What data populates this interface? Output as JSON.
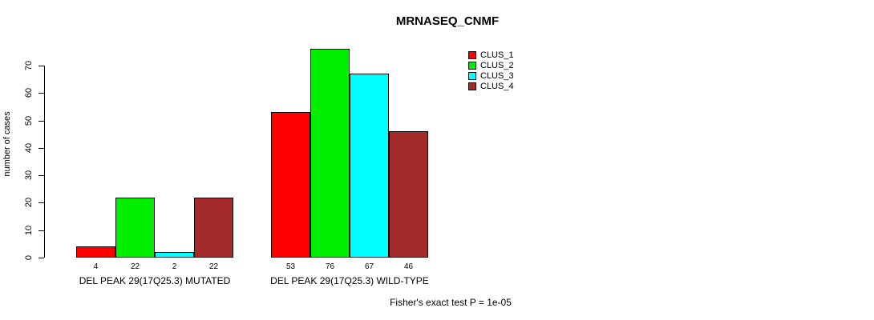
{
  "title": "MRNASEQ_CNMF",
  "footer": "Fisher's exact test P = 1e-05",
  "chart_data": {
    "type": "bar",
    "title": "MRNASEQ_CNMF",
    "xlabel": "",
    "ylabel": "number of cases",
    "ylim": [
      0,
      70
    ],
    "yticks": [
      0,
      10,
      20,
      30,
      40,
      50,
      60,
      70
    ],
    "grid": false,
    "legend_position": "top-right",
    "categories": [
      "DEL PEAK 29(17Q25.3) MUTATED",
      "DEL PEAK 29(17Q25.3) WILD-TYPE"
    ],
    "series": [
      {
        "name": "CLUS_1",
        "color": "#FF0000",
        "values": [
          4,
          53
        ]
      },
      {
        "name": "CLUS_2",
        "color": "#00EE00",
        "values": [
          22,
          76
        ]
      },
      {
        "name": "CLUS_3",
        "color": "#00FFFF",
        "values": [
          2,
          67
        ]
      },
      {
        "name": "CLUS_4",
        "color": "#A52A2A",
        "values": [
          22,
          46
        ]
      }
    ],
    "bar_value_labels": [
      [
        4,
        22,
        2,
        22
      ],
      [
        53,
        76,
        67,
        46
      ]
    ],
    "annotation": "Fisher's exact test P = 1e-05"
  }
}
